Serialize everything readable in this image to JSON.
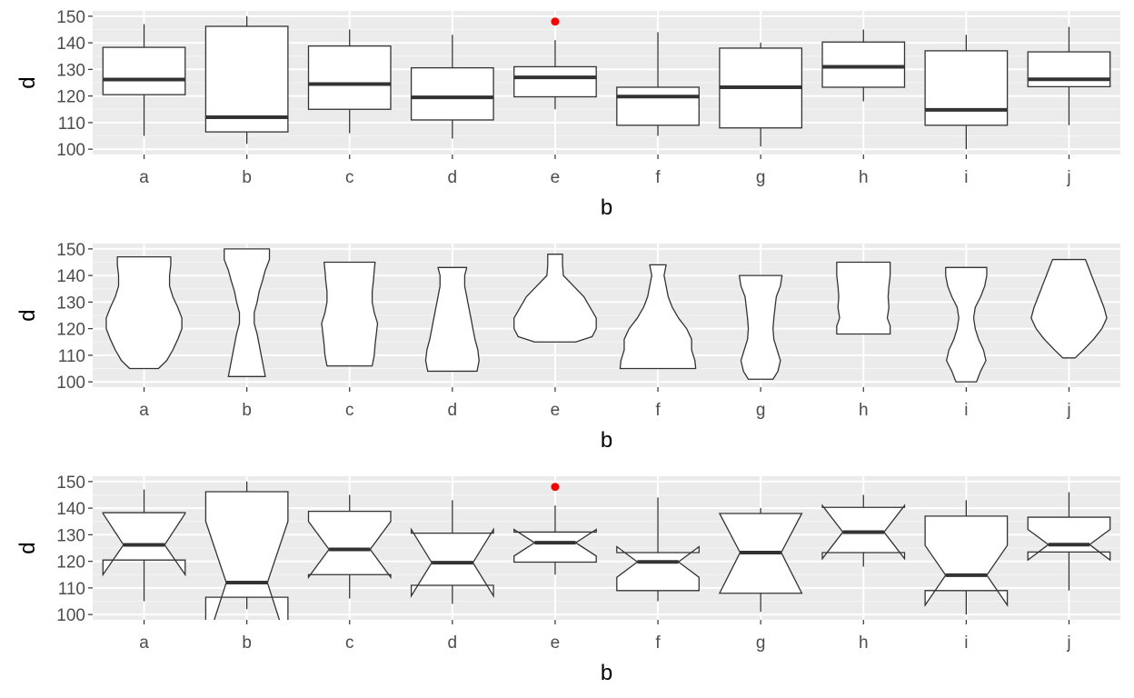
{
  "chart_data": [
    {
      "type": "boxplot",
      "xlabel": "b",
      "ylabel": "d",
      "categories": [
        "a",
        "b",
        "c",
        "d",
        "e",
        "f",
        "g",
        "h",
        "i",
        "j"
      ],
      "yticks": [
        100,
        110,
        120,
        130,
        140,
        150
      ],
      "ylim": [
        98,
        152
      ],
      "grid": true,
      "boxes": [
        {
          "min": 105,
          "q1": 120.5,
          "median": 126.2,
          "q3": 138.3,
          "max": 147
        },
        {
          "min": 102,
          "q1": 106.5,
          "median": 112,
          "q3": 146.2,
          "max": 150
        },
        {
          "min": 106,
          "q1": 115,
          "median": 124.5,
          "q3": 138.8,
          "max": 145
        },
        {
          "min": 104,
          "q1": 111,
          "median": 119.5,
          "q3": 130.6,
          "max": 143
        },
        {
          "min": 115,
          "q1": 119.7,
          "median": 127,
          "q3": 131,
          "max": 141
        },
        {
          "min": 105,
          "q1": 109,
          "median": 119.8,
          "q3": 123.3,
          "max": 144
        },
        {
          "min": 101,
          "q1": 108,
          "median": 123.3,
          "q3": 138,
          "max": 140
        },
        {
          "min": 118,
          "q1": 123.3,
          "median": 131,
          "q3": 140.3,
          "max": 145
        },
        {
          "min": 100,
          "q1": 109,
          "median": 114.8,
          "q3": 137,
          "max": 143
        },
        {
          "min": 109,
          "q1": 123.5,
          "median": 126.3,
          "q3": 136.6,
          "max": 146
        }
      ],
      "outliers": [
        {
          "category": "e",
          "value": 148
        }
      ],
      "outlier_color": "#ff0000"
    },
    {
      "type": "violin",
      "xlabel": "b",
      "ylabel": "d",
      "categories": [
        "a",
        "b",
        "c",
        "d",
        "e",
        "f",
        "g",
        "h",
        "i",
        "j"
      ],
      "yticks": [
        100,
        110,
        120,
        130,
        140,
        150
      ],
      "ylim": [
        98,
        152
      ],
      "grid": true,
      "violins": [
        {
          "profile": [
            [
              105,
              0.35
            ],
            [
              108,
              0.55
            ],
            [
              112,
              0.7
            ],
            [
              116,
              0.82
            ],
            [
              120,
              0.92
            ],
            [
              124,
              0.92
            ],
            [
              128,
              0.82
            ],
            [
              132,
              0.7
            ],
            [
              136,
              0.62
            ],
            [
              140,
              0.62
            ],
            [
              144,
              0.65
            ],
            [
              147,
              0.65
            ]
          ]
        },
        {
          "profile": [
            [
              102,
              0.45
            ],
            [
              106,
              0.4
            ],
            [
              110,
              0.35
            ],
            [
              114,
              0.3
            ],
            [
              118,
              0.25
            ],
            [
              122,
              0.18
            ],
            [
              126,
              0.18
            ],
            [
              130,
              0.25
            ],
            [
              134,
              0.3
            ],
            [
              138,
              0.38
            ],
            [
              142,
              0.45
            ],
            [
              146,
              0.55
            ],
            [
              150,
              0.55
            ]
          ]
        },
        {
          "profile": [
            [
              106,
              0.55
            ],
            [
              110,
              0.6
            ],
            [
              114,
              0.62
            ],
            [
              118,
              0.65
            ],
            [
              122,
              0.68
            ],
            [
              126,
              0.6
            ],
            [
              130,
              0.55
            ],
            [
              134,
              0.55
            ],
            [
              138,
              0.58
            ],
            [
              142,
              0.6
            ],
            [
              145,
              0.62
            ]
          ]
        },
        {
          "profile": [
            [
              104,
              0.6
            ],
            [
              108,
              0.65
            ],
            [
              112,
              0.62
            ],
            [
              116,
              0.55
            ],
            [
              120,
              0.5
            ],
            [
              124,
              0.45
            ],
            [
              128,
              0.4
            ],
            [
              132,
              0.35
            ],
            [
              136,
              0.3
            ],
            [
              140,
              0.3
            ],
            [
              143,
              0.35
            ]
          ]
        },
        {
          "profile": [
            [
              115,
              0.5
            ],
            [
              117,
              0.9
            ],
            [
              120,
              1.0
            ],
            [
              124,
              1.0
            ],
            [
              128,
              0.85
            ],
            [
              132,
              0.7
            ],
            [
              136,
              0.45
            ],
            [
              140,
              0.2
            ],
            [
              144,
              0.18
            ],
            [
              148,
              0.18
            ]
          ]
        },
        {
          "profile": [
            [
              105,
              0.92
            ],
            [
              108,
              0.9
            ],
            [
              112,
              0.82
            ],
            [
              116,
              0.82
            ],
            [
              120,
              0.7
            ],
            [
              124,
              0.5
            ],
            [
              128,
              0.35
            ],
            [
              132,
              0.25
            ],
            [
              136,
              0.2
            ],
            [
              140,
              0.15
            ],
            [
              144,
              0.2
            ]
          ]
        },
        {
          "profile": [
            [
              101,
              0.3
            ],
            [
              104,
              0.42
            ],
            [
              108,
              0.48
            ],
            [
              112,
              0.4
            ],
            [
              116,
              0.32
            ],
            [
              120,
              0.3
            ],
            [
              124,
              0.32
            ],
            [
              128,
              0.35
            ],
            [
              132,
              0.38
            ],
            [
              136,
              0.48
            ],
            [
              140,
              0.52
            ]
          ]
        },
        {
          "profile": [
            [
              118,
              0.65
            ],
            [
              121,
              0.65
            ],
            [
              124,
              0.58
            ],
            [
              128,
              0.62
            ],
            [
              132,
              0.6
            ],
            [
              136,
              0.62
            ],
            [
              140,
              0.65
            ],
            [
              143,
              0.65
            ],
            [
              145,
              0.65
            ]
          ]
        },
        {
          "profile": [
            [
              100,
              0.25
            ],
            [
              104,
              0.35
            ],
            [
              108,
              0.48
            ],
            [
              112,
              0.42
            ],
            [
              116,
              0.3
            ],
            [
              120,
              0.22
            ],
            [
              124,
              0.18
            ],
            [
              128,
              0.22
            ],
            [
              132,
              0.35
            ],
            [
              136,
              0.45
            ],
            [
              140,
              0.5
            ],
            [
              143,
              0.5
            ]
          ]
        },
        {
          "profile": [
            [
              109,
              0.15
            ],
            [
              112,
              0.35
            ],
            [
              116,
              0.6
            ],
            [
              120,
              0.8
            ],
            [
              124,
              0.92
            ],
            [
              128,
              0.85
            ],
            [
              132,
              0.75
            ],
            [
              136,
              0.65
            ],
            [
              140,
              0.55
            ],
            [
              144,
              0.45
            ],
            [
              146,
              0.4
            ]
          ]
        }
      ]
    },
    {
      "type": "boxplot",
      "notched": true,
      "xlabel": "b",
      "ylabel": "d",
      "categories": [
        "a",
        "b",
        "c",
        "d",
        "e",
        "f",
        "g",
        "h",
        "i",
        "j"
      ],
      "yticks": [
        100,
        110,
        120,
        130,
        140,
        150
      ],
      "ylim": [
        98,
        152
      ],
      "grid": true,
      "boxes": [
        {
          "min": 105,
          "q1": 120.5,
          "median": 126.2,
          "q3": 138.3,
          "max": 147,
          "nlow": 115,
          "nhigh": 138
        },
        {
          "min": 102,
          "q1": 106.5,
          "median": 112,
          "q3": 146.2,
          "max": 150,
          "nlow": 88,
          "nhigh": 135
        },
        {
          "min": 106,
          "q1": 115,
          "median": 124.5,
          "q3": 138.8,
          "max": 145,
          "nlow": 114,
          "nhigh": 135
        },
        {
          "min": 104,
          "q1": 111,
          "median": 119.5,
          "q3": 130.6,
          "max": 143,
          "nlow": 107,
          "nhigh": 132
        },
        {
          "min": 115,
          "q1": 119.7,
          "median": 127,
          "q3": 131,
          "max": 141,
          "nlow": 122,
          "nhigh": 132
        },
        {
          "min": 105,
          "q1": 109,
          "median": 119.8,
          "q3": 123.3,
          "max": 144,
          "nlow": 114,
          "nhigh": 125.5
        },
        {
          "min": 101,
          "q1": 108,
          "median": 123.3,
          "q3": 138,
          "max": 140,
          "nlow": 108,
          "nhigh": 138
        },
        {
          "min": 118,
          "q1": 123.3,
          "median": 131,
          "q3": 140.3,
          "max": 145,
          "nlow": 121,
          "nhigh": 141
        },
        {
          "min": 100,
          "q1": 109,
          "median": 114.8,
          "q3": 137,
          "max": 143,
          "nlow": 103.5,
          "nhigh": 126
        },
        {
          "min": 109,
          "q1": 123.5,
          "median": 126.3,
          "q3": 136.6,
          "max": 146,
          "nlow": 120.5,
          "nhigh": 132
        }
      ],
      "outliers": [
        {
          "category": "e",
          "value": 148
        }
      ],
      "outlier_color": "#ff0000"
    }
  ]
}
